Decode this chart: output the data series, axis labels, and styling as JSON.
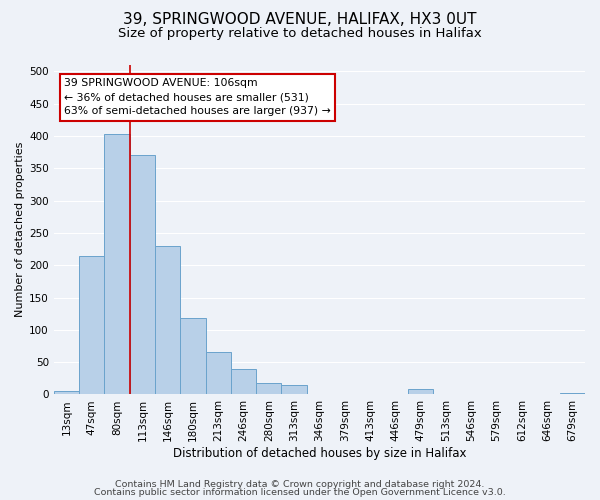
{
  "title": "39, SPRINGWOOD AVENUE, HALIFAX, HX3 0UT",
  "subtitle": "Size of property relative to detached houses in Halifax",
  "xlabel": "Distribution of detached houses by size in Halifax",
  "ylabel": "Number of detached properties",
  "bar_labels": [
    "13sqm",
    "47sqm",
    "80sqm",
    "113sqm",
    "146sqm",
    "180sqm",
    "213sqm",
    "246sqm",
    "280sqm",
    "313sqm",
    "346sqm",
    "379sqm",
    "413sqm",
    "446sqm",
    "479sqm",
    "513sqm",
    "546sqm",
    "579sqm",
    "612sqm",
    "646sqm",
    "679sqm"
  ],
  "bar_values": [
    5,
    215,
    403,
    370,
    230,
    118,
    65,
    40,
    18,
    15,
    0,
    0,
    0,
    0,
    8,
    0,
    0,
    0,
    0,
    0,
    2
  ],
  "bar_color": "#b8d0e8",
  "bar_edge_color": "#6aa3cc",
  "vline_index": 2.5,
  "vline_color": "#cc0000",
  "annotation_text": "39 SPRINGWOOD AVENUE: 106sqm\n← 36% of detached houses are smaller (531)\n63% of semi-detached houses are larger (937) →",
  "annotation_box_color": "#ffffff",
  "annotation_box_edge": "#cc0000",
  "ylim": [
    0,
    510
  ],
  "yticks": [
    0,
    50,
    100,
    150,
    200,
    250,
    300,
    350,
    400,
    450,
    500
  ],
  "footer1": "Contains HM Land Registry data © Crown copyright and database right 2024.",
  "footer2": "Contains public sector information licensed under the Open Government Licence v3.0.",
  "background_color": "#eef2f8",
  "plot_bg_color": "#eef2f8",
  "grid_color": "#ffffff",
  "title_fontsize": 11,
  "subtitle_fontsize": 9.5,
  "ylabel_fontsize": 8,
  "xlabel_fontsize": 8.5,
  "tick_fontsize": 7.5,
  "footer_fontsize": 6.8
}
